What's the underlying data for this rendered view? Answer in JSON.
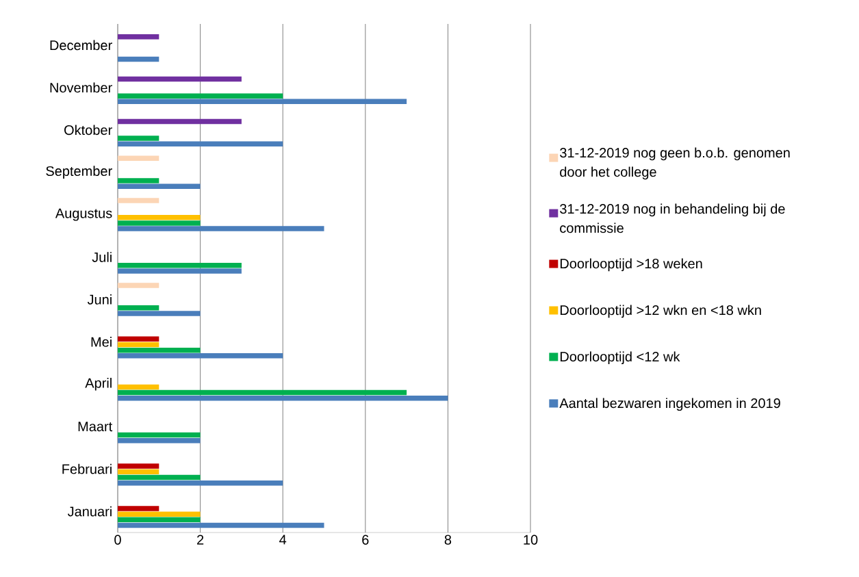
{
  "chart_data": {
    "type": "bar",
    "orientation": "horizontal",
    "categories": [
      "December",
      "November",
      "Oktober",
      "September",
      "Augustus",
      "Juli",
      "Juni",
      "Mei",
      "April",
      "Maart",
      "Februari",
      "Januari"
    ],
    "series": [
      {
        "name": "31-12-2019 nog geen b.o.b. genomen door het college",
        "color": "#fcd5b5",
        "values": [
          null,
          null,
          null,
          1,
          1,
          null,
          1,
          null,
          null,
          null,
          null,
          null
        ]
      },
      {
        "name": "31-12-2019 nog in behandeling bij de commissie",
        "color": "#7030a0",
        "values": [
          1,
          3,
          3,
          null,
          null,
          null,
          null,
          null,
          null,
          null,
          null,
          null
        ]
      },
      {
        "name": "Doorlooptijd >18 weken",
        "color": "#c00000",
        "values": [
          null,
          null,
          null,
          null,
          null,
          null,
          null,
          1,
          null,
          null,
          1,
          1
        ]
      },
      {
        "name": "Doorlooptijd >12 wkn en <18 wkn",
        "color": "#ffc000",
        "values": [
          null,
          null,
          null,
          null,
          2,
          null,
          null,
          1,
          1,
          null,
          1,
          2
        ]
      },
      {
        "name": "Doorlooptijd <12 wk",
        "color": "#00b050",
        "values": [
          null,
          4,
          1,
          1,
          2,
          3,
          1,
          2,
          7,
          2,
          2,
          2
        ]
      },
      {
        "name": "Aantal bezwaren ingekomen in 2019",
        "color": "#4a7ebb",
        "values": [
          1,
          7,
          4,
          2,
          5,
          3,
          2,
          4,
          8,
          2,
          4,
          5
        ]
      }
    ],
    "xlim": [
      0,
      10
    ],
    "xticks": [
      0,
      2,
      4,
      6,
      8,
      10
    ],
    "grid": "x",
    "legend": "right"
  }
}
